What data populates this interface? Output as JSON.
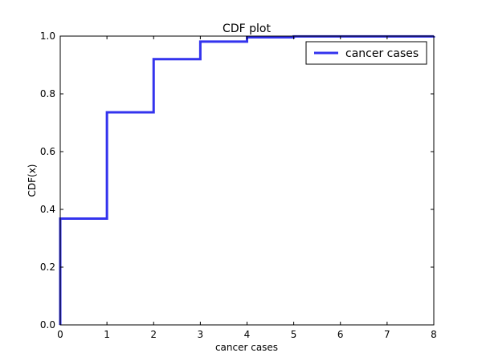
{
  "chart_data": {
    "type": "line",
    "drawstyle": "steps-post",
    "title": "CDF plot",
    "xlabel": "cancer cases",
    "ylabel": "CDF(x)",
    "xlim": [
      0,
      8
    ],
    "ylim": [
      0.0,
      1.0
    ],
    "xticks": [
      0,
      1,
      2,
      3,
      4,
      5,
      6,
      7,
      8
    ],
    "xtick_labels": [
      "0",
      "1",
      "2",
      "3",
      "4",
      "5",
      "6",
      "7",
      "8"
    ],
    "yticks": [
      0.0,
      0.2,
      0.4,
      0.6,
      0.8,
      1.0
    ],
    "ytick_labels": [
      "0.0",
      "0.2",
      "0.4",
      "0.6",
      "0.8",
      "1.0"
    ],
    "grid": false,
    "legend_position": "top-right",
    "series": [
      {
        "name": "cancer cases",
        "color": "#3333ee",
        "x": [
          0,
          1,
          2,
          3,
          4,
          5,
          8
        ],
        "y": [
          0.368,
          0.736,
          0.92,
          0.981,
          0.996,
          0.999,
          1.0
        ]
      }
    ]
  }
}
